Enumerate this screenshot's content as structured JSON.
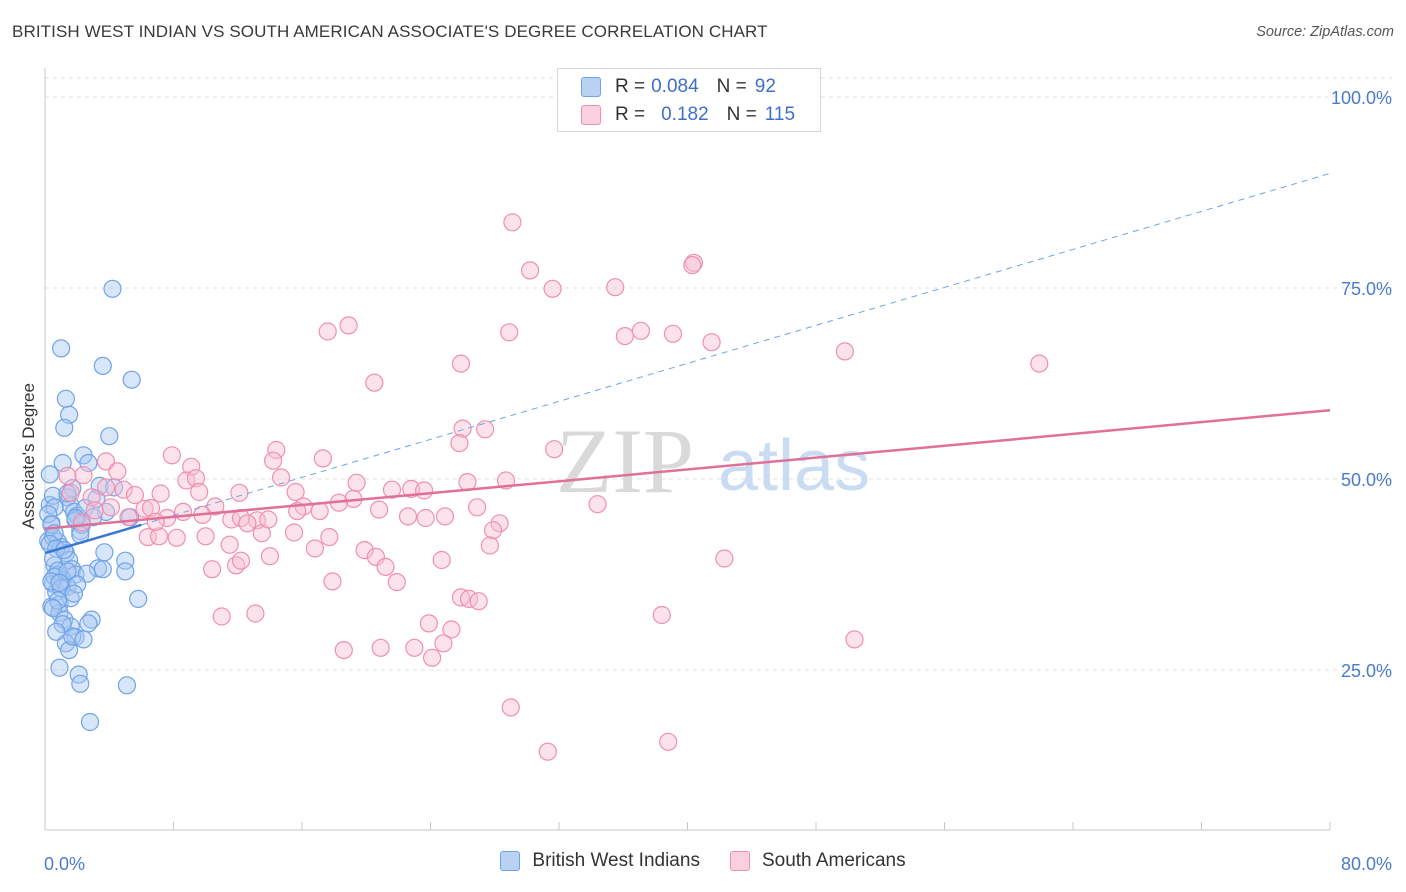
{
  "title": "BRITISH WEST INDIAN VS SOUTH AMERICAN ASSOCIATE'S DEGREE CORRELATION CHART",
  "source": "Source: ZipAtlas.com",
  "watermark": {
    "zip": "ZIP",
    "atlas": "atlas"
  },
  "legend_top": {
    "rows": [
      {
        "r_label": "R =",
        "r_value": "0.084",
        "n_label": "N =",
        "n_value": "92"
      },
      {
        "r_label": "R =",
        "r_value": "0.182",
        "n_label": "N =",
        "n_value": "115"
      }
    ]
  },
  "chart_data": {
    "type": "scatter",
    "title": "BRITISH WEST INDIAN VS SOUTH AMERICAN ASSOCIATE'S DEGREE CORRELATION CHART",
    "xlabel": "",
    "ylabel": "Associate's Degree",
    "xlim": [
      0,
      80
    ],
    "ylim": [
      0,
      105
    ],
    "x_tick_labels": [
      "0.0%",
      "80.0%"
    ],
    "y_ticks": [
      25,
      50,
      75,
      100
    ],
    "y_tick_labels": [
      "25.0%",
      "50.0%",
      "75.0%",
      "100.0%"
    ],
    "grid": "horizontal dashed",
    "legend_placement": "top-center and bottom",
    "series": [
      {
        "name": "British West Indians",
        "color": "#6fa3e8",
        "fill": "#a9c8f2",
        "r": 0.084,
        "n": 92,
        "trend": {
          "x": [
            0,
            6
          ],
          "y": [
            40.3,
            44.0
          ],
          "style": "solid"
        },
        "trend_extended": {
          "x": [
            6,
            80
          ],
          "y": [
            44.0,
            90.0
          ],
          "style": "dashed"
        },
        "points": [
          [
            0.3,
            46.6
          ],
          [
            0.4,
            44.2
          ],
          [
            0.2,
            41.9
          ],
          [
            0.6,
            38.7
          ],
          [
            0.8,
            37.4
          ],
          [
            0.5,
            36.3
          ],
          [
            0.7,
            35.2
          ],
          [
            0.9,
            33.6
          ],
          [
            1.0,
            67.1
          ],
          [
            1.3,
            60.5
          ],
          [
            1.5,
            58.4
          ],
          [
            1.2,
            56.7
          ],
          [
            1.1,
            52.1
          ],
          [
            1.7,
            48.8
          ],
          [
            1.4,
            47.6
          ],
          [
            1.6,
            46.5
          ],
          [
            1.8,
            45.7
          ],
          [
            2.0,
            45.2
          ],
          [
            1.9,
            44.6
          ],
          [
            2.2,
            43.2
          ],
          [
            0.5,
            42.4
          ],
          [
            0.8,
            41.8
          ],
          [
            1.0,
            41.1
          ],
          [
            1.3,
            40.3
          ],
          [
            1.5,
            39.4
          ],
          [
            1.7,
            38.2
          ],
          [
            1.9,
            37.5
          ],
          [
            1.1,
            36.8
          ],
          [
            1.4,
            35.9
          ],
          [
            1.6,
            34.4
          ],
          [
            0.4,
            33.3
          ],
          [
            0.9,
            32.5
          ],
          [
            1.2,
            31.6
          ],
          [
            1.6,
            30.7
          ],
          [
            1.9,
            29.3
          ],
          [
            1.3,
            28.5
          ],
          [
            1.5,
            27.6
          ],
          [
            0.9,
            25.3
          ],
          [
            2.1,
            24.4
          ],
          [
            2.2,
            23.2
          ],
          [
            2.8,
            18.2
          ],
          [
            4.2,
            74.9
          ],
          [
            3.6,
            64.8
          ],
          [
            5.4,
            63.0
          ],
          [
            4.0,
            55.6
          ],
          [
            2.4,
            53.1
          ],
          [
            2.7,
            52.1
          ],
          [
            3.4,
            49.1
          ],
          [
            4.3,
            48.9
          ],
          [
            3.2,
            47.4
          ],
          [
            2.5,
            46.2
          ],
          [
            3.8,
            45.7
          ],
          [
            3.0,
            45.0
          ],
          [
            2.3,
            44.0
          ],
          [
            5.3,
            45.0
          ],
          [
            3.7,
            40.4
          ],
          [
            5.0,
            39.3
          ],
          [
            3.3,
            38.3
          ],
          [
            3.6,
            38.2
          ],
          [
            5.0,
            37.9
          ],
          [
            2.6,
            37.6
          ],
          [
            2.0,
            36.2
          ],
          [
            5.8,
            34.3
          ],
          [
            2.9,
            31.6
          ],
          [
            2.7,
            31.1
          ],
          [
            1.7,
            29.4
          ],
          [
            2.4,
            29.0
          ],
          [
            5.1,
            23.0
          ],
          [
            0.3,
            50.6
          ],
          [
            0.5,
            47.8
          ],
          [
            0.6,
            46.3
          ],
          [
            0.2,
            45.4
          ],
          [
            0.4,
            44.0
          ],
          [
            0.6,
            42.9
          ],
          [
            0.3,
            41.5
          ],
          [
            0.7,
            40.9
          ],
          [
            0.5,
            39.6
          ],
          [
            0.8,
            38.0
          ],
          [
            0.6,
            37.2
          ],
          [
            0.4,
            36.6
          ],
          [
            1.0,
            35.7
          ],
          [
            0.8,
            34.1
          ],
          [
            0.5,
            33.1
          ],
          [
            1.1,
            31.0
          ],
          [
            0.7,
            30.0
          ],
          [
            1.4,
            48.1
          ],
          [
            1.9,
            44.9
          ],
          [
            2.2,
            42.7
          ],
          [
            1.2,
            40.7
          ],
          [
            1.4,
            37.9
          ],
          [
            0.9,
            36.4
          ],
          [
            1.8,
            35.0
          ]
        ]
      },
      {
        "name": "South Americans",
        "color": "#f08fb0",
        "fill": "#f7bfd2",
        "r": 0.182,
        "n": 115,
        "trend": {
          "x": [
            0,
            80
          ],
          "y": [
            43.5,
            59.0
          ],
          "style": "solid"
        },
        "points": [
          [
            29.1,
            83.6
          ],
          [
            30.2,
            77.3
          ],
          [
            31.6,
            74.9
          ],
          [
            35.5,
            75.1
          ],
          [
            40.4,
            78.3
          ],
          [
            40.3,
            78.0
          ],
          [
            17.6,
            69.3
          ],
          [
            18.9,
            70.1
          ],
          [
            28.9,
            69.2
          ],
          [
            36.1,
            68.7
          ],
          [
            37.1,
            69.4
          ],
          [
            39.1,
            69.0
          ],
          [
            41.5,
            67.9
          ],
          [
            49.8,
            66.7
          ],
          [
            61.9,
            65.1
          ],
          [
            25.9,
            65.1
          ],
          [
            20.5,
            62.6
          ],
          [
            26.0,
            56.6
          ],
          [
            27.4,
            56.5
          ],
          [
            31.7,
            53.9
          ],
          [
            14.4,
            53.8
          ],
          [
            14.2,
            52.4
          ],
          [
            17.3,
            52.7
          ],
          [
            25.8,
            54.7
          ],
          [
            7.9,
            53.1
          ],
          [
            9.1,
            51.6
          ],
          [
            3.8,
            52.3
          ],
          [
            1.4,
            50.4
          ],
          [
            4.5,
            51.0
          ],
          [
            2.4,
            50.5
          ],
          [
            14.7,
            50.2
          ],
          [
            26.3,
            49.6
          ],
          [
            28.7,
            49.8
          ],
          [
            8.8,
            49.8
          ],
          [
            9.4,
            50.1
          ],
          [
            19.4,
            49.5
          ],
          [
            21.6,
            48.6
          ],
          [
            22.8,
            48.7
          ],
          [
            23.6,
            48.5
          ],
          [
            9.6,
            48.3
          ],
          [
            7.2,
            48.1
          ],
          [
            15.6,
            48.3
          ],
          [
            12.1,
            48.2
          ],
          [
            2.9,
            47.6
          ],
          [
            3.8,
            48.9
          ],
          [
            4.9,
            48.6
          ],
          [
            6.2,
            46.1
          ],
          [
            6.6,
            46.2
          ],
          [
            10.6,
            46.4
          ],
          [
            16.1,
            46.4
          ],
          [
            19.2,
            47.4
          ],
          [
            34.4,
            46.7
          ],
          [
            20.8,
            46.0
          ],
          [
            15.7,
            45.8
          ],
          [
            9.8,
            45.3
          ],
          [
            5.2,
            45.0
          ],
          [
            7.6,
            44.9
          ],
          [
            11.6,
            44.7
          ],
          [
            12.2,
            44.9
          ],
          [
            13.2,
            44.6
          ],
          [
            22.6,
            45.1
          ],
          [
            23.7,
            44.9
          ],
          [
            24.9,
            45.1
          ],
          [
            28.3,
            44.2
          ],
          [
            27.9,
            43.3
          ],
          [
            13.5,
            42.9
          ],
          [
            6.4,
            42.4
          ],
          [
            7.1,
            42.5
          ],
          [
            8.2,
            42.3
          ],
          [
            11.5,
            41.4
          ],
          [
            15.5,
            43.0
          ],
          [
            17.7,
            42.4
          ],
          [
            27.7,
            41.3
          ],
          [
            16.8,
            40.9
          ],
          [
            19.9,
            40.7
          ],
          [
            14.0,
            39.9
          ],
          [
            11.9,
            38.7
          ],
          [
            12.2,
            39.3
          ],
          [
            10.4,
            38.2
          ],
          [
            20.6,
            39.8
          ],
          [
            24.7,
            39.4
          ],
          [
            42.3,
            39.6
          ],
          [
            21.2,
            38.5
          ],
          [
            21.9,
            36.5
          ],
          [
            17.9,
            36.6
          ],
          [
            25.9,
            34.5
          ],
          [
            26.4,
            34.3
          ],
          [
            27.0,
            34.0
          ],
          [
            11.0,
            32.0
          ],
          [
            13.1,
            32.4
          ],
          [
            23.9,
            31.1
          ],
          [
            25.3,
            30.3
          ],
          [
            38.4,
            32.2
          ],
          [
            50.4,
            29.0
          ],
          [
            24.8,
            28.5
          ],
          [
            23.0,
            27.9
          ],
          [
            20.9,
            27.9
          ],
          [
            18.6,
            27.6
          ],
          [
            24.1,
            26.6
          ],
          [
            29.0,
            20.1
          ],
          [
            31.3,
            14.3
          ],
          [
            38.8,
            15.6
          ],
          [
            2.3,
            44.3
          ],
          [
            3.1,
            45.9
          ],
          [
            1.6,
            48.2
          ],
          [
            5.6,
            47.9
          ],
          [
            6.9,
            44.4
          ],
          [
            18.3,
            46.9
          ],
          [
            8.6,
            45.7
          ],
          [
            4.1,
            46.3
          ],
          [
            26.9,
            46.3
          ],
          [
            10.0,
            42.5
          ],
          [
            17.1,
            45.8
          ],
          [
            13.9,
            44.7
          ],
          [
            12.6,
            44.2
          ]
        ]
      }
    ]
  },
  "legend_bottom": {
    "items": [
      "British West Indians",
      "South Americans"
    ]
  },
  "colors": {
    "blue": "#3a78d4",
    "pink": "#e07098",
    "axis": "#4a7cc9",
    "grid": "#e2e2e2"
  }
}
